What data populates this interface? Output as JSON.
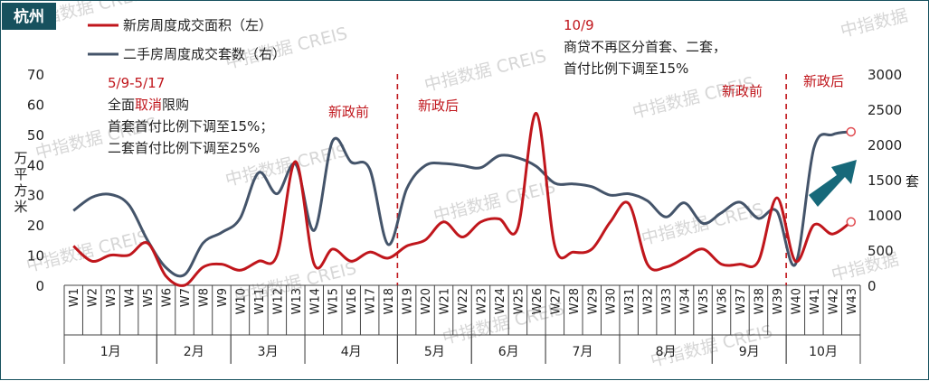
{
  "chart_data": {
    "type": "line",
    "badge": "杭州",
    "legend": [
      {
        "name": "新房周度成交面积（左）",
        "color": "#c0161c"
      },
      {
        "name": "二手房周度成交套数（右）",
        "color": "#44546a"
      }
    ],
    "categories": [
      "W1",
      "W2",
      "W3",
      "W4",
      "W5",
      "W6",
      "W7",
      "W8",
      "W9",
      "W10",
      "W11",
      "W12",
      "W13",
      "W14",
      "W15",
      "W16",
      "W17",
      "W18",
      "W19",
      "W20",
      "W21",
      "W22",
      "W23",
      "W24",
      "W25",
      "W26",
      "W27",
      "W28",
      "W29",
      "W30",
      "W31",
      "W32",
      "W33",
      "W34",
      "W35",
      "W36",
      "W37",
      "W38",
      "W39",
      "W40",
      "W41",
      "W42",
      "W43"
    ],
    "months": [
      {
        "label": "1月",
        "start": 0,
        "end": 4
      },
      {
        "label": "2月",
        "start": 5,
        "end": 8
      },
      {
        "label": "3月",
        "start": 9,
        "end": 12
      },
      {
        "label": "4月",
        "start": 13,
        "end": 17
      },
      {
        "label": "5月",
        "start": 18,
        "end": 21
      },
      {
        "label": "6月",
        "start": 22,
        "end": 25
      },
      {
        "label": "7月",
        "start": 26,
        "end": 29
      },
      {
        "label": "8月",
        "start": 30,
        "end": 34
      },
      {
        "label": "9月",
        "start": 35,
        "end": 38
      },
      {
        "label": "10月",
        "start": 39,
        "end": 42
      }
    ],
    "series": [
      {
        "name": "新房周度成交面积（左）",
        "axis": "left",
        "color": "#c0161c",
        "values": [
          13,
          8,
          10,
          10,
          14,
          3,
          0,
          6,
          7,
          5,
          8,
          10,
          41,
          7,
          12,
          8,
          11,
          9,
          13,
          15,
          21,
          16,
          21,
          22,
          19,
          57,
          13,
          11,
          12,
          21,
          27,
          7,
          6,
          9,
          12,
          7,
          7,
          8,
          29,
          8,
          20,
          17,
          21
        ]
      },
      {
        "name": "二手房周度成交套数（右）",
        "axis": "right",
        "color": "#44546a",
        "values": [
          1060,
          1250,
          1290,
          1140,
          640,
          250,
          150,
          600,
          750,
          950,
          1600,
          1300,
          1720,
          780,
          2050,
          1750,
          1650,
          580,
          1370,
          1700,
          1730,
          1700,
          1670,
          1840,
          1810,
          1690,
          1450,
          1440,
          1400,
          1280,
          1300,
          1200,
          970,
          1170,
          880,
          1030,
          1180,
          950,
          1050,
          300,
          1950,
          2140,
          2180
        ]
      }
    ],
    "y_left": {
      "label": "万平方米",
      "ticks": [
        "0",
        "10",
        "20",
        "30",
        "40",
        "50",
        "60",
        "70"
      ],
      "min": 0,
      "max": 70
    },
    "y_right": {
      "label": "套",
      "ticks": [
        "0",
        "500",
        "1000",
        "1500",
        "2000",
        "2500",
        "3000"
      ],
      "min": 0,
      "max": 3000
    },
    "policy_lines_after": [
      17,
      38
    ],
    "markers": [
      {
        "series": 0,
        "index": 42
      },
      {
        "series": 1,
        "index": 42
      }
    ],
    "annotations": {
      "ann1_date": "5/9-5/17",
      "ann1_line1_a": "全面",
      "ann1_line1_b": "取消",
      "ann1_line1_c": "限购",
      "ann1_line2": "首套首付比例下调至15%；",
      "ann1_line3": "二套首付比例下调至25%",
      "ann2_date": "10/9",
      "ann2_line1": "商贷不再区分首套、二套，",
      "ann2_line2": "首付比例下调至15%",
      "pre1": "新政前",
      "post1": "新政后",
      "pre2": "新政前",
      "post2": "新政后"
    },
    "watermarks": [
      "中指数据 CREIS",
      "中指数据"
    ]
  }
}
